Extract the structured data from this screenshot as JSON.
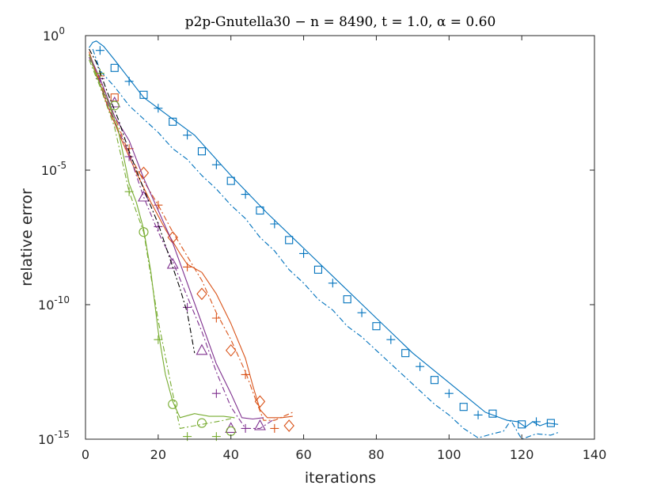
{
  "chart_data": {
    "type": "line",
    "title": "p2p-Gnutella30 − n = 8490, t = 1.0, α = 0.60",
    "xlabel": "iterations",
    "ylabel": "relative error",
    "xlim": [
      0,
      140
    ],
    "ylim": [
      1e-15,
      1
    ],
    "yscale": "log",
    "xticks": [
      "0",
      "20",
      "40",
      "60",
      "80",
      "100",
      "120",
      "140"
    ],
    "yticks": [
      {
        "base": "10",
        "exp": "0",
        "value": 0
      },
      {
        "base": "10",
        "exp": "-5",
        "value": -5
      },
      {
        "base": "10",
        "exp": "-10",
        "value": -10
      },
      {
        "base": "10",
        "exp": "-15",
        "value": -15
      }
    ],
    "grid": false,
    "colors": {
      "blue": "#0072bd",
      "orange": "#d95319",
      "purple": "#7e2f8e",
      "green": "#77ac30",
      "black": "#000000",
      "axes": "#262626"
    },
    "series": [
      {
        "color": "blue",
        "style": "solid",
        "marker": "none",
        "log10_y": [
          [
            1,
            -0.45
          ],
          [
            2,
            -0.25
          ],
          [
            3,
            -0.2
          ],
          [
            5,
            -0.4
          ],
          [
            8,
            -0.9
          ],
          [
            12,
            -1.6
          ],
          [
            16,
            -2.3
          ],
          [
            20,
            -2.7
          ],
          [
            25,
            -3.2
          ],
          [
            30,
            -3.7
          ],
          [
            36,
            -4.6
          ],
          [
            40,
            -5.2
          ],
          [
            50,
            -6.6
          ],
          [
            60,
            -7.9
          ],
          [
            70,
            -9.2
          ],
          [
            80,
            -10.5
          ],
          [
            90,
            -11.8
          ],
          [
            100,
            -12.9
          ],
          [
            110,
            -14.0
          ],
          [
            116,
            -14.3
          ],
          [
            119,
            -14.35
          ],
          [
            121,
            -14.55
          ],
          [
            123,
            -14.35
          ],
          [
            125,
            -14.5
          ],
          [
            127,
            -14.4
          ],
          [
            130,
            -14.45
          ]
        ]
      },
      {
        "color": "blue",
        "style": "dashdot",
        "marker": "mixed",
        "log10_y": [
          [
            2,
            -0.5
          ],
          [
            4,
            -1.3
          ],
          [
            8,
            -1.9
          ],
          [
            12,
            -2.6
          ],
          [
            16,
            -3.1
          ],
          [
            20,
            -3.6
          ],
          [
            24,
            -4.2
          ],
          [
            28,
            -4.6
          ],
          [
            32,
            -5.2
          ],
          [
            36,
            -5.7
          ],
          [
            40,
            -6.3
          ],
          [
            44,
            -6.8
          ],
          [
            48,
            -7.5
          ],
          [
            52,
            -8.0
          ],
          [
            56,
            -8.7
          ],
          [
            60,
            -9.2
          ],
          [
            64,
            -9.8
          ],
          [
            68,
            -10.2
          ],
          [
            72,
            -10.8
          ],
          [
            76,
            -11.2
          ],
          [
            80,
            -11.7
          ],
          [
            84,
            -12.2
          ],
          [
            88,
            -12.7
          ],
          [
            92,
            -13.2
          ],
          [
            96,
            -13.7
          ],
          [
            100,
            -14.1
          ],
          [
            104,
            -14.6
          ],
          [
            108,
            -14.95
          ],
          [
            112,
            -14.8
          ],
          [
            115,
            -14.7
          ],
          [
            117,
            -14.3
          ],
          [
            120,
            -15.0
          ],
          [
            124,
            -14.8
          ],
          [
            128,
            -14.85
          ],
          [
            130,
            -14.75
          ]
        ],
        "markers": [
          [
            4,
            -0.55,
            "plus"
          ],
          [
            8,
            -1.2,
            "square"
          ],
          [
            12,
            -1.7,
            "plus"
          ],
          [
            16,
            -2.2,
            "square"
          ],
          [
            20,
            -2.7,
            "plus"
          ],
          [
            24,
            -3.2,
            "square"
          ],
          [
            28,
            -3.7,
            "plus"
          ],
          [
            32,
            -4.3,
            "square"
          ],
          [
            36,
            -4.8,
            "plus"
          ],
          [
            40,
            -5.4,
            "square"
          ],
          [
            44,
            -5.9,
            "plus"
          ],
          [
            48,
            -6.5,
            "square"
          ],
          [
            52,
            -7.0,
            "plus"
          ],
          [
            56,
            -7.6,
            "square"
          ],
          [
            60,
            -8.1,
            "plus"
          ],
          [
            64,
            -8.7,
            "square"
          ],
          [
            68,
            -9.2,
            "plus"
          ],
          [
            72,
            -9.8,
            "square"
          ],
          [
            76,
            -10.3,
            "plus"
          ],
          [
            80,
            -10.8,
            "square"
          ],
          [
            84,
            -11.3,
            "plus"
          ],
          [
            88,
            -11.8,
            "square"
          ],
          [
            92,
            -12.3,
            "plus"
          ],
          [
            96,
            -12.8,
            "square"
          ],
          [
            100,
            -13.3,
            "plus"
          ],
          [
            104,
            -13.8,
            "square"
          ],
          [
            108,
            -14.1,
            "plus"
          ],
          [
            112,
            -14.05,
            "square"
          ],
          [
            120,
            -14.45,
            "square"
          ],
          [
            124,
            -14.35,
            "plus"
          ],
          [
            128,
            -14.4,
            "square"
          ]
        ]
      },
      {
        "color": "orange",
        "style": "solid",
        "marker": "none",
        "log10_y": [
          [
            1,
            -0.6
          ],
          [
            3,
            -1.4
          ],
          [
            6,
            -2.6
          ],
          [
            10,
            -3.9
          ],
          [
            14,
            -5.1
          ],
          [
            18,
            -6.2
          ],
          [
            22,
            -7.2
          ],
          [
            26,
            -8.1
          ],
          [
            28,
            -8.5
          ],
          [
            32,
            -8.8
          ],
          [
            36,
            -9.6
          ],
          [
            40,
            -10.7
          ],
          [
            44,
            -12.0
          ],
          [
            46,
            -13.0
          ],
          [
            48,
            -13.9
          ],
          [
            50,
            -14.2
          ],
          [
            54,
            -14.2
          ],
          [
            57,
            -14.15
          ]
        ]
      },
      {
        "color": "orange",
        "style": "dashdot",
        "marker": "mixed",
        "log10_y": [
          [
            1,
            -0.7
          ],
          [
            4,
            -1.7
          ],
          [
            8,
            -3.0
          ],
          [
            12,
            -4.4
          ],
          [
            16,
            -5.4
          ],
          [
            20,
            -6.3
          ],
          [
            24,
            -7.3
          ],
          [
            28,
            -8.2
          ],
          [
            32,
            -9.1
          ],
          [
            36,
            -10.3
          ],
          [
            40,
            -11.3
          ],
          [
            44,
            -12.5
          ],
          [
            47,
            -13.6
          ],
          [
            49,
            -14.3
          ],
          [
            52,
            -14.3
          ],
          [
            57,
            -14.0
          ]
        ],
        "markers": [
          [
            4,
            -1.5,
            "plus"
          ],
          [
            8,
            -2.3,
            "square"
          ],
          [
            12,
            -4.2,
            "plus"
          ],
          [
            16,
            -5.1,
            "diamond"
          ],
          [
            20,
            -6.3,
            "plus"
          ],
          [
            24,
            -7.5,
            "diamond"
          ],
          [
            28,
            -8.6,
            "plus"
          ],
          [
            32,
            -9.6,
            "diamond"
          ],
          [
            36,
            -10.5,
            "plus"
          ],
          [
            40,
            -11.7,
            "diamond"
          ],
          [
            44,
            -12.6,
            "plus"
          ],
          [
            48,
            -13.6,
            "diamond"
          ],
          [
            52,
            -14.6,
            "plus"
          ],
          [
            56,
            -14.5,
            "diamond"
          ]
        ]
      },
      {
        "color": "purple",
        "style": "solid",
        "marker": "none",
        "log10_y": [
          [
            1,
            -0.7
          ],
          [
            4,
            -1.6
          ],
          [
            8,
            -3.0
          ],
          [
            12,
            -3.9
          ],
          [
            16,
            -5.3
          ],
          [
            20,
            -6.5
          ],
          [
            24,
            -7.7
          ],
          [
            28,
            -9.2
          ],
          [
            32,
            -10.7
          ],
          [
            36,
            -12.2
          ],
          [
            40,
            -13.3
          ],
          [
            43,
            -14.2
          ],
          [
            46,
            -14.25
          ],
          [
            49,
            -14.2
          ]
        ]
      },
      {
        "color": "purple",
        "style": "dashdot",
        "marker": "mixed",
        "log10_y": [
          [
            1,
            -0.8
          ],
          [
            4,
            -1.8
          ],
          [
            8,
            -3.2
          ],
          [
            12,
            -4.4
          ],
          [
            16,
            -6.0
          ],
          [
            20,
            -7.3
          ],
          [
            24,
            -8.4
          ],
          [
            28,
            -9.7
          ],
          [
            32,
            -11.0
          ],
          [
            36,
            -12.5
          ],
          [
            40,
            -13.8
          ],
          [
            44,
            -14.6
          ],
          [
            48,
            -14.6
          ],
          [
            52,
            -14.25
          ]
        ],
        "markers": [
          [
            4,
            -1.6,
            "plus"
          ],
          [
            8,
            -2.5,
            "triangle"
          ],
          [
            12,
            -4.5,
            "plus"
          ],
          [
            16,
            -6.0,
            "triangle"
          ],
          [
            20,
            -7.1,
            "plus"
          ],
          [
            24,
            -8.5,
            "triangle"
          ],
          [
            28,
            -10.1,
            "plus"
          ],
          [
            32,
            -11.7,
            "triangle"
          ],
          [
            36,
            -13.3,
            "plus"
          ],
          [
            40,
            -14.6,
            "triangle"
          ],
          [
            44,
            -14.6,
            "plus"
          ],
          [
            48,
            -14.5,
            "triangle"
          ]
        ]
      },
      {
        "color": "green",
        "style": "solid",
        "marker": "none",
        "log10_y": [
          [
            1,
            -0.7
          ],
          [
            3,
            -1.5
          ],
          [
            6,
            -2.4
          ],
          [
            9,
            -3.5
          ],
          [
            12,
            -5.5
          ],
          [
            14,
            -6.2
          ],
          [
            16,
            -7.2
          ],
          [
            18,
            -8.8
          ],
          [
            20,
            -11.0
          ],
          [
            22,
            -12.6
          ],
          [
            24,
            -13.6
          ],
          [
            26,
            -14.2
          ],
          [
            30,
            -14.05
          ],
          [
            34,
            -14.15
          ],
          [
            38,
            -14.15
          ],
          [
            41,
            -14.2
          ]
        ]
      },
      {
        "color": "green",
        "style": "dashdot",
        "marker": "mixed",
        "log10_y": [
          [
            1,
            -0.9
          ],
          [
            4,
            -1.9
          ],
          [
            8,
            -3.4
          ],
          [
            12,
            -5.8
          ],
          [
            16,
            -7.3
          ],
          [
            20,
            -10.6
          ],
          [
            24,
            -13.3
          ],
          [
            26,
            -14.6
          ],
          [
            30,
            -14.5
          ],
          [
            34,
            -14.4
          ],
          [
            38,
            -14.3
          ],
          [
            41,
            -14.2
          ]
        ],
        "markers": [
          [
            4,
            -1.4,
            "plus"
          ],
          [
            8,
            -2.6,
            "circle"
          ],
          [
            12,
            -5.8,
            "plus"
          ],
          [
            16,
            -7.3,
            "circle"
          ],
          [
            20,
            -11.3,
            "plus"
          ],
          [
            24,
            -13.7,
            "circle"
          ],
          [
            28,
            -14.9,
            "plus"
          ],
          [
            32,
            -14.4,
            "circle"
          ],
          [
            36,
            -14.9,
            "plus"
          ],
          [
            40,
            -14.7,
            "circle"
          ]
        ]
      },
      {
        "color": "black",
        "style": "dashdot",
        "marker": "none",
        "log10_y": [
          [
            1,
            -0.5
          ],
          [
            3,
            -1.0
          ],
          [
            6,
            -2.1
          ],
          [
            9,
            -3.1
          ],
          [
            12,
            -4.3
          ],
          [
            16,
            -5.7
          ],
          [
            20,
            -7.0
          ],
          [
            24,
            -8.6
          ],
          [
            26,
            -9.4
          ],
          [
            28,
            -10.3
          ],
          [
            30,
            -11.8
          ]
        ]
      }
    ]
  }
}
